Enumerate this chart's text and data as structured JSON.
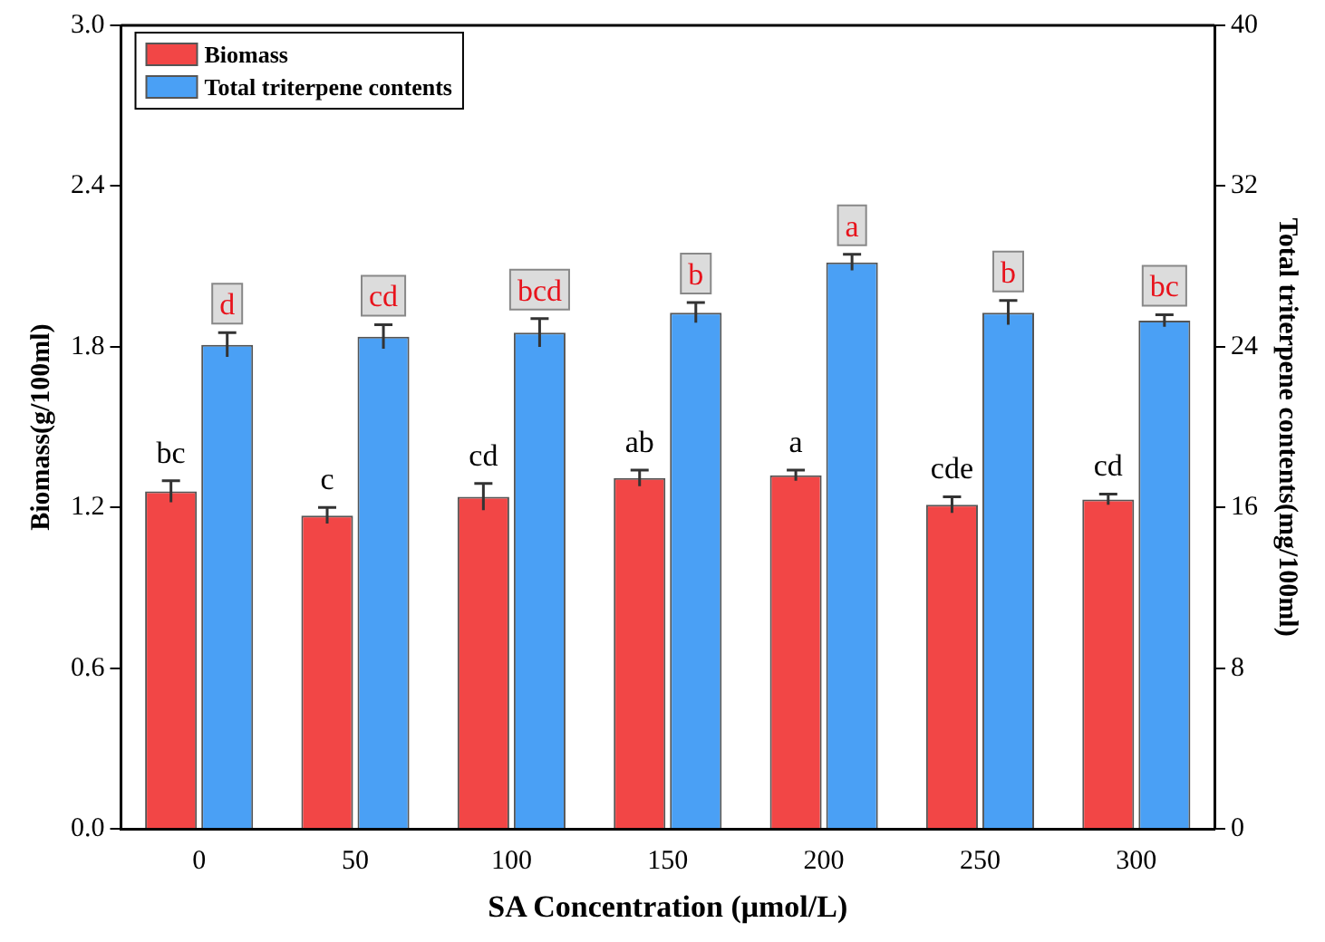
{
  "chart_data": {
    "type": "bar",
    "xlabel": "SA Concentration (μmol/L)",
    "ylabel": "Biomass(g/100ml)",
    "y2label": "Total triterpene contents(mg/100ml)",
    "categories": [
      "0",
      "50",
      "100",
      "150",
      "200",
      "250",
      "300"
    ],
    "series": [
      {
        "name": "Biomass",
        "color": "#f24646",
        "values": [
          1.26,
          1.17,
          1.24,
          1.31,
          1.32,
          1.21,
          1.23
        ],
        "errors": [
          0.04,
          0.03,
          0.05,
          0.03,
          0.02,
          0.03,
          0.02
        ],
        "value_labels": [
          "bc",
          "c",
          "cd",
          "ab",
          "a",
          "cde",
          "cd"
        ]
      },
      {
        "name": "Total triterpene contents",
        "color": "#4aa0f5",
        "axis": "y2",
        "values": [
          24.1,
          24.5,
          24.7,
          25.7,
          28.2,
          25.7,
          25.3
        ],
        "errors": [
          0.6,
          0.6,
          0.7,
          0.5,
          0.4,
          0.6,
          0.3
        ],
        "value_labels": [
          "d",
          "cd",
          "bcd",
          "b",
          "a",
          "b",
          "bc"
        ]
      }
    ],
    "ylim": [
      0,
      3
    ],
    "yticks": [
      {
        "value": 0,
        "label": "0.0"
      },
      0.6,
      1.2,
      1.8,
      2.4,
      {
        "value": 3,
        "label": "3.0"
      }
    ],
    "y2lim": [
      0,
      40
    ],
    "y2ticks": [
      0,
      8,
      16,
      24,
      32,
      40
    ],
    "grid": false,
    "legend": "top left"
  }
}
